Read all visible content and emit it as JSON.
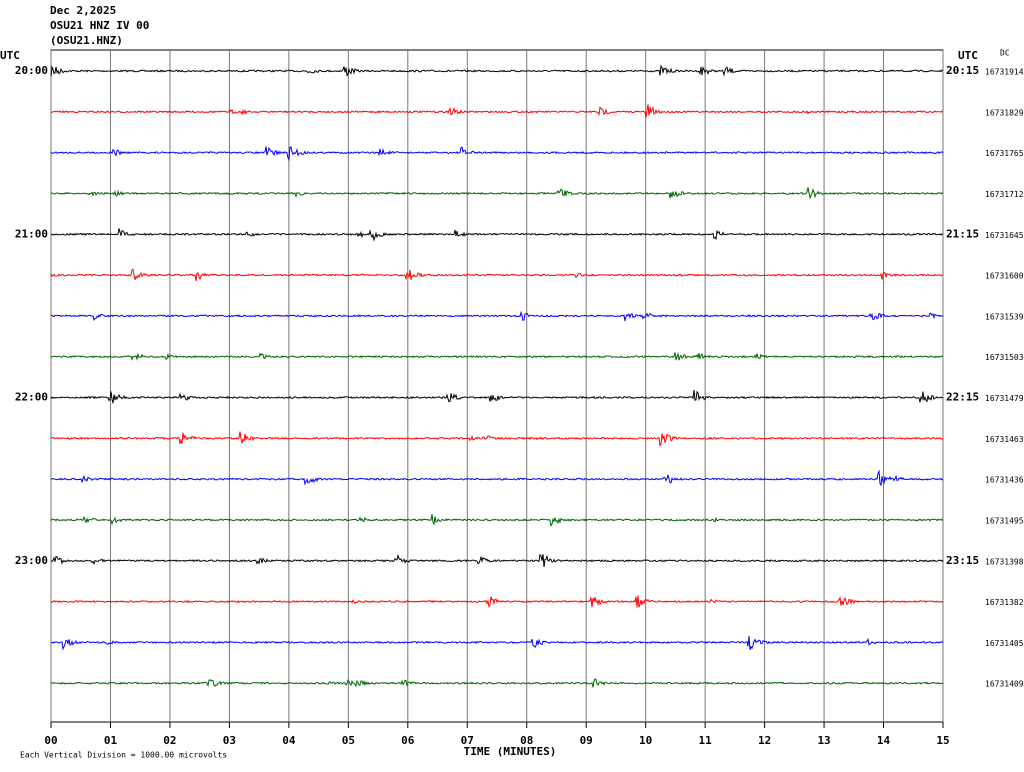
{
  "chart_data": {
    "type": "helicorder",
    "title_lines": [
      "Dec 2,2025",
      "OSU21 HNZ IV 00",
      "(OSU21.HNZ)"
    ],
    "left_axis_label": "UTC",
    "right_axis_label": "UTC",
    "dc_label": "DC",
    "x_label": "TIME (MINUTES)",
    "footnote": "Each Vertical Division = 1000.00 microvolts",
    "xlim": [
      0,
      15
    ],
    "xticks": [
      {
        "value": 0,
        "label": "00"
      },
      {
        "value": 1,
        "label": "01"
      },
      {
        "value": 2,
        "label": "02"
      },
      {
        "value": 3,
        "label": "03"
      },
      {
        "value": 4,
        "label": "04"
      },
      {
        "value": 5,
        "label": "05"
      },
      {
        "value": 6,
        "label": "06"
      },
      {
        "value": 7,
        "label": "07"
      },
      {
        "value": 8,
        "label": "08"
      },
      {
        "value": 9,
        "label": "09"
      },
      {
        "value": 10,
        "label": "10"
      },
      {
        "value": 11,
        "label": "11"
      },
      {
        "value": 12,
        "label": "12"
      },
      {
        "value": 13,
        "label": "13"
      },
      {
        "value": 14,
        "label": "14"
      },
      {
        "value": 15,
        "label": "15"
      }
    ],
    "grid": true,
    "rows": [
      {
        "start": "20:00",
        "end": "20:15",
        "color": "#000000",
        "dc": 16731914
      },
      {
        "start": null,
        "end": null,
        "color": "#ff0000",
        "dc": 16731829
      },
      {
        "start": null,
        "end": null,
        "color": "#0000ff",
        "dc": 16731765
      },
      {
        "start": null,
        "end": null,
        "color": "#006400",
        "dc": 16731712
      },
      {
        "start": "21:00",
        "end": "21:15",
        "color": "#000000",
        "dc": 16731645
      },
      {
        "start": null,
        "end": null,
        "color": "#ff0000",
        "dc": 16731600
      },
      {
        "start": null,
        "end": null,
        "color": "#0000ff",
        "dc": 16731539
      },
      {
        "start": null,
        "end": null,
        "color": "#006400",
        "dc": 16731503
      },
      {
        "start": "22:00",
        "end": "22:15",
        "color": "#000000",
        "dc": 16731479
      },
      {
        "start": null,
        "end": null,
        "color": "#ff0000",
        "dc": 16731463
      },
      {
        "start": null,
        "end": null,
        "color": "#0000ff",
        "dc": 16731436
      },
      {
        "start": null,
        "end": null,
        "color": "#006400",
        "dc": 16731495
      },
      {
        "start": "23:00",
        "end": "23:15",
        "color": "#000000",
        "dc": 16731398
      },
      {
        "start": null,
        "end": null,
        "color": "#ff0000",
        "dc": 16731382
      },
      {
        "start": null,
        "end": null,
        "color": "#0000ff",
        "dc": 16731405
      },
      {
        "start": null,
        "end": null,
        "color": "#006400",
        "dc": 16731409
      }
    ]
  }
}
